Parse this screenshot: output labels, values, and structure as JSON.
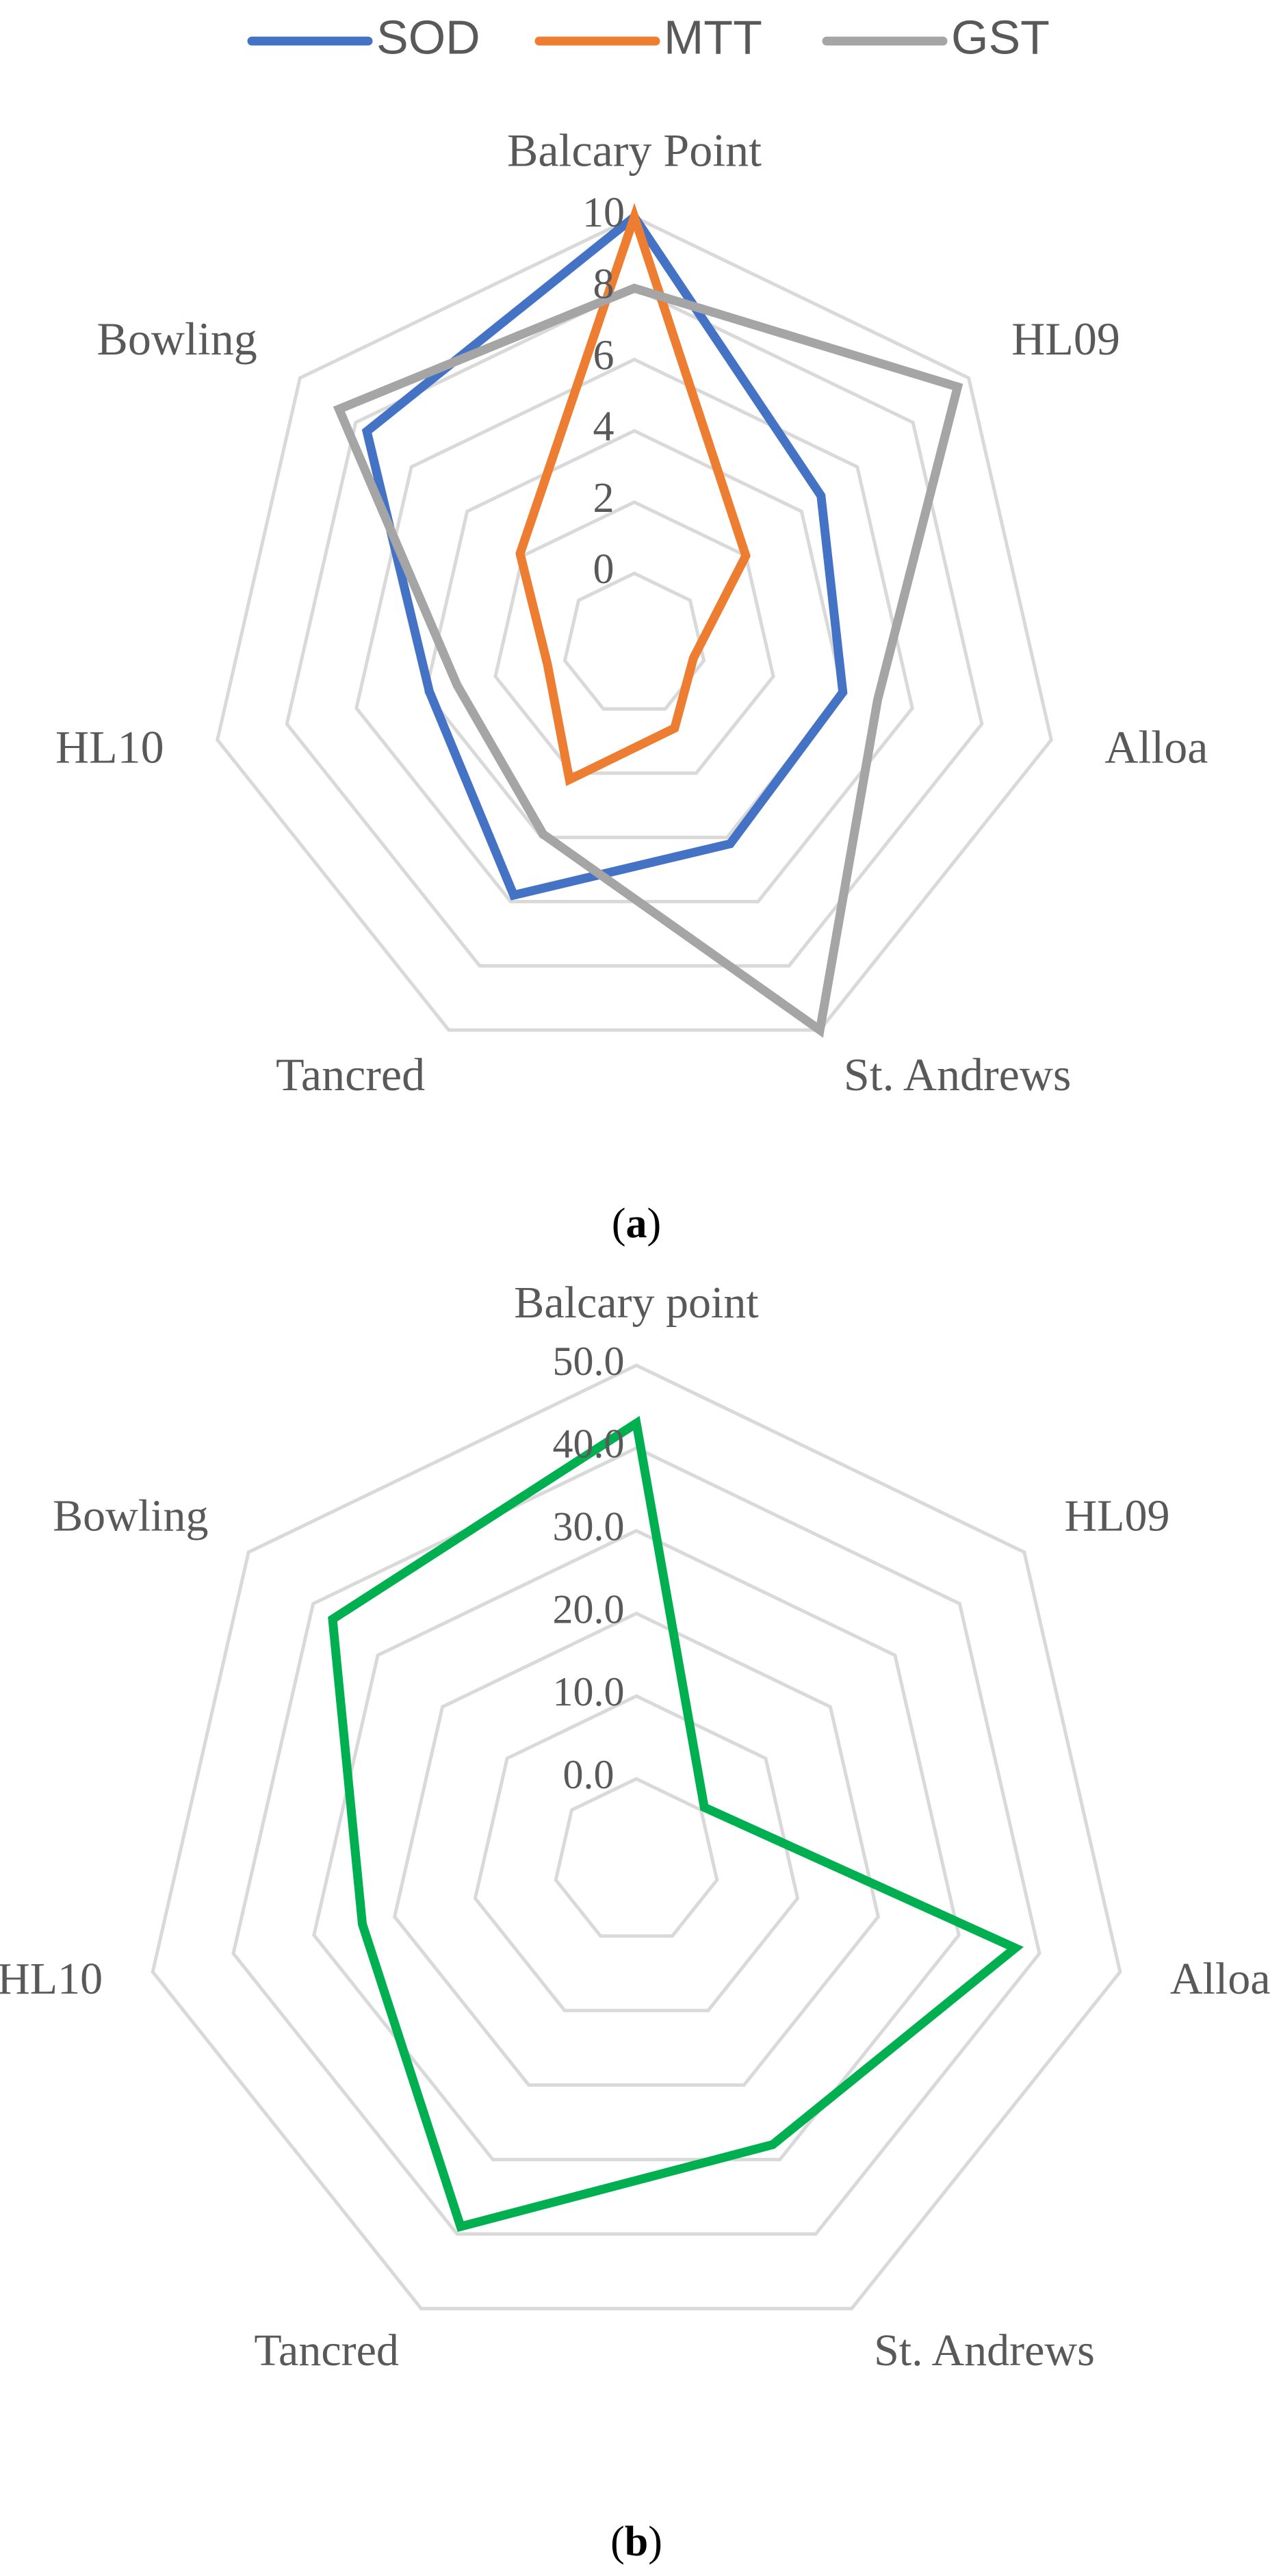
{
  "chart_data": [
    {
      "type": "radar",
      "caption_letter": "a",
      "categories": [
        "Balcary Point",
        "HL09",
        "Alloa",
        "St. Andrews",
        "Tancred",
        "HL10",
        "Bowling"
      ],
      "ticks": [
        "0",
        "2",
        "4",
        "6",
        "8",
        "10"
      ],
      "rlim": [
        -2,
        10
      ],
      "grid": true,
      "legend_position": "top",
      "series": [
        {
          "name": "SOD",
          "color": "#4472C4",
          "values": [
            10,
            4.7,
            4.0,
            4.2,
            5.8,
            3.9,
            7.6
          ]
        },
        {
          "name": "MTT",
          "color": "#ED7D31",
          "values": [
            10,
            2.0,
            -0.3,
            0.6,
            2.2,
            0.5,
            2.1
          ]
        },
        {
          "name": "GST",
          "color": "#A5A5A5",
          "values": [
            8.0,
            9.6,
            5.0,
            10.0,
            3.9,
            3.1,
            8.6
          ]
        }
      ]
    },
    {
      "type": "radar",
      "caption_letter": "b",
      "categories": [
        "Balcary point",
        "HL09",
        "Alloa",
        "St. Andrews",
        "Tancred",
        "HL10",
        "Bowling"
      ],
      "ticks": [
        "0.0",
        "10.0",
        "20.0",
        "30.0",
        "40.0",
        "50.0"
      ],
      "rlim": [
        -10,
        50
      ],
      "grid": true,
      "series": [
        {
          "name": "",
          "color": "#00B050",
          "values": [
            43.0,
            0.5,
            37.0,
            28.0,
            39.0,
            24.0,
            37.0
          ]
        }
      ]
    }
  ]
}
